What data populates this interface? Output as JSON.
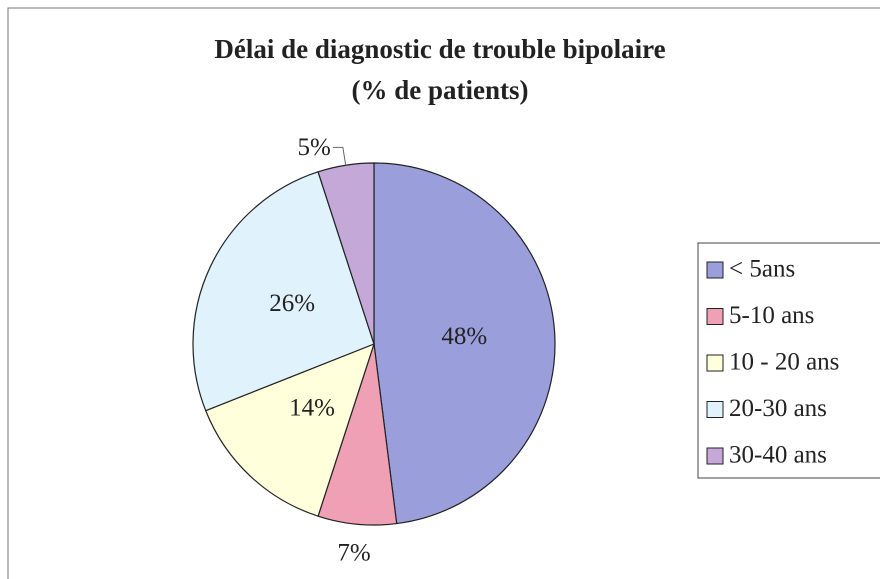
{
  "chart_data": {
    "type": "pie",
    "title": "Délai de diagnostic de trouble bipolaire",
    "subtitle": "(% de patients)",
    "categories": [
      "< 5ans",
      "5-10 ans",
      "10 - 20 ans",
      "20-30 ans",
      "30-40 ans"
    ],
    "values": [
      48,
      7,
      14,
      26,
      5
    ],
    "value_labels": [
      "48%",
      "7%",
      "14%",
      "26%",
      "5%"
    ],
    "colors": [
      "#9a9fdc",
      "#f0a0b4",
      "#ffffdc",
      "#e0f2fb",
      "#c4a8d8"
    ],
    "legend": "right"
  }
}
